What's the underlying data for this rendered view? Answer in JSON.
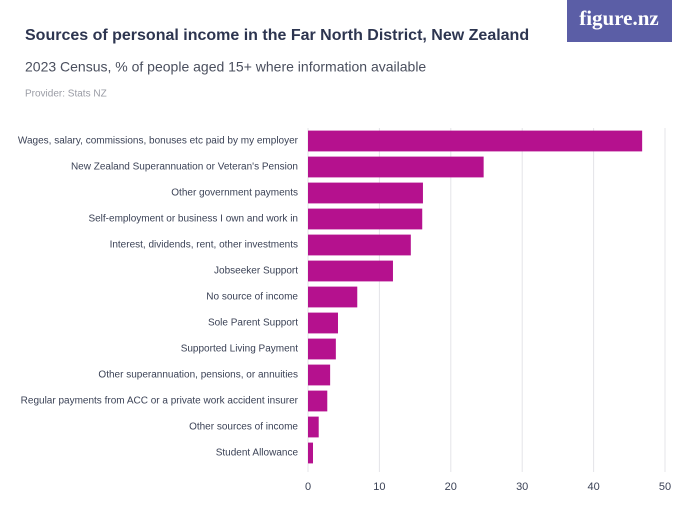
{
  "header": {
    "logo": "figure.nz"
  },
  "chart_data": {
    "type": "bar",
    "title": "Sources of personal income in the Far North District, New Zealand",
    "subtitle": "2023 Census, % of people aged 15+ where information available",
    "source": "Provider: Stats NZ",
    "categories": [
      "Wages, salary, commissions, bonuses etc paid by my employer",
      "New Zealand Superannuation or Veteran's Pension",
      "Other government payments",
      "Self-employment or business I own and work in",
      "Interest, dividends, rent, other investments",
      "Jobseeker Support",
      "No source of income",
      "Sole Parent Support",
      "Supported Living Payment",
      "Other superannuation, pensions, or annuities",
      "Regular payments from ACC or a private work accident insurer",
      "Other sources of income",
      "Student Allowance"
    ],
    "values": [
      46.8,
      24.6,
      16.1,
      16.0,
      14.4,
      11.9,
      6.9,
      4.2,
      3.9,
      3.1,
      2.7,
      1.5,
      0.7
    ],
    "color": "#b5118e",
    "xlim": [
      0,
      50
    ],
    "xticks": [
      0,
      10,
      20,
      30,
      40,
      50
    ],
    "grid": true
  }
}
